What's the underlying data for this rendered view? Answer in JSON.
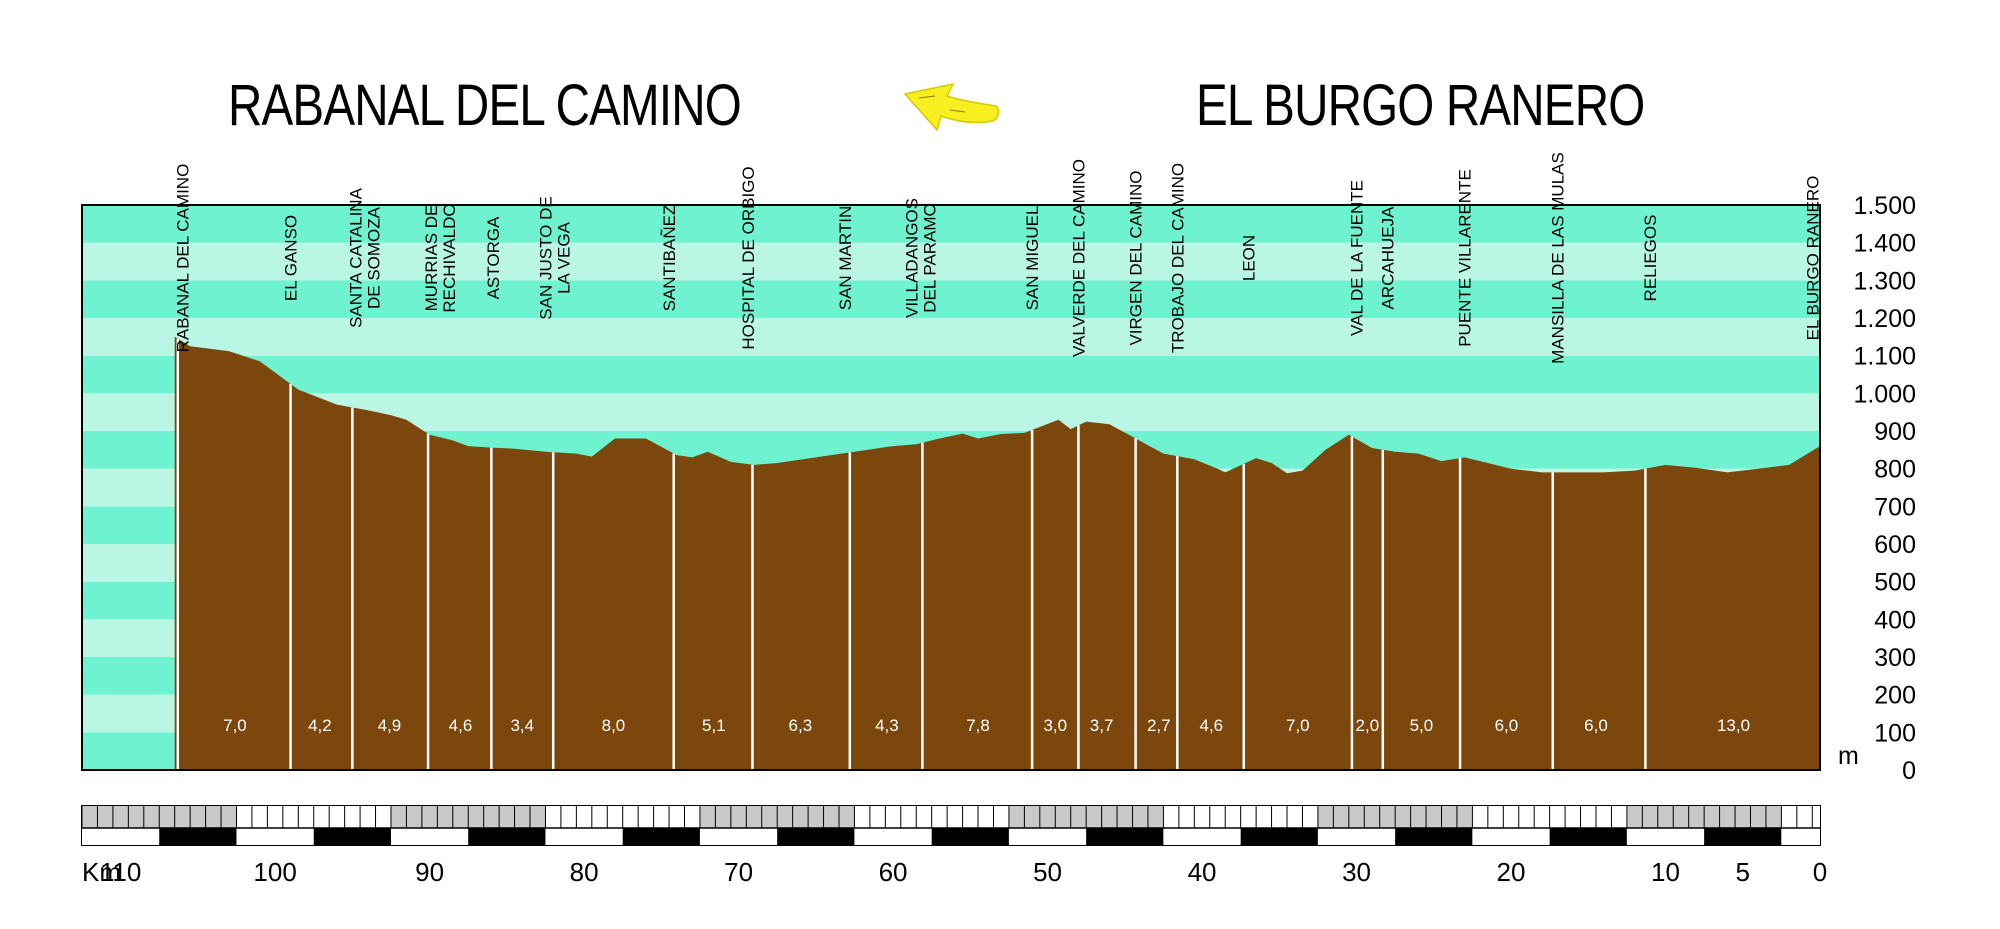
{
  "header": {
    "start": "RABANAL DEL CAMINO",
    "end": "EL BURGO RANERO"
  },
  "colors": {
    "band_dark": "#6ff2cf",
    "band_light": "#b9f7e4",
    "terrain": "#7b470c",
    "arrow": "#f7ef1f",
    "divider": "#ffffff"
  },
  "chart_data": {
    "type": "area",
    "x_unit": "Km",
    "y_unit": "m",
    "xlim": [
      112.5,
      0
    ],
    "ylim": [
      0,
      1500
    ],
    "y_ticks": [
      {
        "v": 0,
        "t": "0"
      },
      {
        "v": 100,
        "t": "100"
      },
      {
        "v": 200,
        "t": "200"
      },
      {
        "v": 300,
        "t": "300"
      },
      {
        "v": 400,
        "t": "400"
      },
      {
        "v": 500,
        "t": "500"
      },
      {
        "v": 600,
        "t": "600"
      },
      {
        "v": 700,
        "t": "700"
      },
      {
        "v": 800,
        "t": "800"
      },
      {
        "v": 900,
        "t": "900"
      },
      {
        "v": 1000,
        "t": "1.000"
      },
      {
        "v": 1100,
        "t": "1.100"
      },
      {
        "v": 1200,
        "t": "1.200"
      },
      {
        "v": 1300,
        "t": "1.300"
      },
      {
        "v": 1400,
        "t": "1.400"
      },
      {
        "v": 1500,
        "t": "1.500"
      }
    ],
    "x_ticks": [
      {
        "v": 110,
        "t": "110"
      },
      {
        "v": 100,
        "t": "100"
      },
      {
        "v": 90,
        "t": "90"
      },
      {
        "v": 80,
        "t": "80"
      },
      {
        "v": 70,
        "t": "70"
      },
      {
        "v": 60,
        "t": "60"
      },
      {
        "v": 50,
        "t": "50"
      },
      {
        "v": 40,
        "t": "40"
      },
      {
        "v": 30,
        "t": "30"
      },
      {
        "v": 20,
        "t": "20"
      },
      {
        "v": 10,
        "t": "10"
      },
      {
        "v": 5,
        "t": "5"
      },
      {
        "v": 0,
        "t": "0"
      }
    ],
    "profile": [
      [
        106.5,
        1150
      ],
      [
        105.5,
        1125
      ],
      [
        103,
        1112
      ],
      [
        101,
        1085
      ],
      [
        99.5,
        1040
      ],
      [
        98.5,
        1010
      ],
      [
        96,
        970
      ],
      [
        94,
        955
      ],
      [
        92.5,
        942
      ],
      [
        91.5,
        930
      ],
      [
        90,
        890
      ],
      [
        88.5,
        875
      ],
      [
        87.5,
        860
      ],
      [
        86,
        856
      ],
      [
        84.5,
        853
      ],
      [
        82.5,
        845
      ],
      [
        80.5,
        840
      ],
      [
        79.5,
        832
      ],
      [
        78,
        880
      ],
      [
        76,
        880
      ],
      [
        74,
        836
      ],
      [
        73,
        830
      ],
      [
        72,
        845
      ],
      [
        70.5,
        818
      ],
      [
        69,
        810
      ],
      [
        67.5,
        815
      ],
      [
        65,
        830
      ],
      [
        62.5,
        845
      ],
      [
        60,
        860
      ],
      [
        58.5,
        865
      ],
      [
        57,
        880
      ],
      [
        55.5,
        893
      ],
      [
        54.5,
        880
      ],
      [
        53,
        892
      ],
      [
        51.5,
        895
      ],
      [
        49.3,
        930
      ],
      [
        48.5,
        905
      ],
      [
        47.5,
        925
      ],
      [
        46,
        918
      ],
      [
        44.5,
        885
      ],
      [
        42.5,
        840
      ],
      [
        40.5,
        825
      ],
      [
        39,
        800
      ],
      [
        38.5,
        790
      ],
      [
        36.5,
        828
      ],
      [
        35.5,
        815
      ],
      [
        34.5,
        788
      ],
      [
        33.5,
        795
      ],
      [
        32,
        850
      ],
      [
        30.5,
        890
      ],
      [
        29,
        855
      ],
      [
        27.5,
        845
      ],
      [
        26,
        840
      ],
      [
        24.5,
        820
      ],
      [
        23,
        830
      ],
      [
        21.5,
        815
      ],
      [
        20,
        800
      ],
      [
        18,
        790
      ],
      [
        16,
        790
      ],
      [
        14,
        790
      ],
      [
        12,
        795
      ],
      [
        10,
        810
      ],
      [
        8,
        802
      ],
      [
        6,
        790
      ],
      [
        4,
        800
      ],
      [
        2,
        810
      ],
      [
        0,
        860
      ]
    ],
    "places": [
      {
        "km": 106,
        "name": "RABANAL DEL CAMINO"
      },
      {
        "km": 99,
        "name": "EL GANSO"
      },
      {
        "km": 94.8,
        "name": "SANTA CATALINA",
        "name2": "DE SOMOZA"
      },
      {
        "km": 89.9,
        "name": "MURRIAS DE",
        "name2": "RECHIVALDO"
      },
      {
        "km": 85.9,
        "name": "ASTORGA"
      },
      {
        "km": 82.5,
        "name": "SAN JUSTO DE",
        "name2": "LA VEGA"
      },
      {
        "km": 74.5,
        "name": "SANTIBAÑEZ"
      },
      {
        "km": 69.4,
        "name": "HOSPITAL DE ORBIGO"
      },
      {
        "km": 63.1,
        "name": "SAN MARTIN"
      },
      {
        "km": 58.8,
        "name": "VILLADANGOS",
        "name2": "DEL PARAMO"
      },
      {
        "km": 51,
        "name": "SAN MIGUEL"
      },
      {
        "km": 48,
        "name": "VALVERDE DEL CAMINO"
      },
      {
        "km": 44.3,
        "name": "VIRGEN DEL CAMINO"
      },
      {
        "km": 41.6,
        "name": "TROBAJO DEL CAMINO"
      },
      {
        "km": 37,
        "name": "LEON"
      },
      {
        "km": 30,
        "name": "VAL DE LA FUENTE"
      },
      {
        "km": 28,
        "name": "ARCAHUEJA"
      },
      {
        "km": 23,
        "name": "PUENTE VILLARENTE"
      },
      {
        "km": 17,
        "name": "MANSILLA DE LAS MULAS"
      },
      {
        "km": 11,
        "name": "RELIEGOS"
      },
      {
        "km": 0.5,
        "name": "EL BURGO RANERO"
      }
    ],
    "dividers": [
      106.3,
      99,
      95,
      90.1,
      86,
      82,
      74.2,
      69.1,
      62.8,
      58.1,
      51,
      48,
      44.3,
      41.6,
      37.3,
      30.3,
      28.3,
      23.3,
      17.3,
      11.3
    ],
    "segments": [
      {
        "km": 102.6,
        "label": "7,0"
      },
      {
        "km": 97.1,
        "label": "4,2"
      },
      {
        "km": 92.6,
        "label": "4,9"
      },
      {
        "km": 88,
        "label": "4,6"
      },
      {
        "km": 84,
        "label": "3,4"
      },
      {
        "km": 78.1,
        "label": "8,0"
      },
      {
        "km": 71.6,
        "label": "5,1"
      },
      {
        "km": 66,
        "label": "6,3"
      },
      {
        "km": 60.4,
        "label": "4,3"
      },
      {
        "km": 54.5,
        "label": "7,8"
      },
      {
        "km": 49.5,
        "label": "3,0"
      },
      {
        "km": 46.5,
        "label": "3,7"
      },
      {
        "km": 42.8,
        "label": "2,7"
      },
      {
        "km": 39.4,
        "label": "4,6"
      },
      {
        "km": 33.8,
        "label": "7,0"
      },
      {
        "km": 29.3,
        "label": "2,0"
      },
      {
        "km": 25.8,
        "label": "5,0"
      },
      {
        "km": 20.3,
        "label": "6,0"
      },
      {
        "km": 14.5,
        "label": "6,0"
      },
      {
        "km": 5.6,
        "label": "13,0"
      }
    ]
  }
}
